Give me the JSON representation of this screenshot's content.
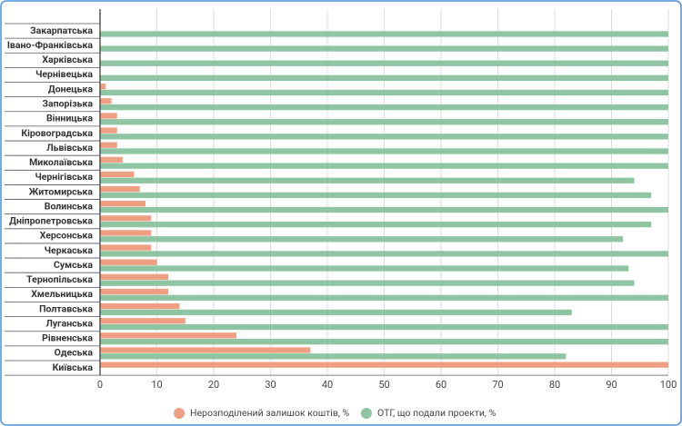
{
  "chart_data": {
    "type": "hbar",
    "categories": [
      "Закарпатська",
      "Івано-Франківська",
      "Харківська",
      "Чернівецька",
      "Донецька",
      "Запорізька",
      "Вінницька",
      "Кіровоградська",
      "Львівська",
      "Миколаївська",
      "Чернігівська",
      "Житомирська",
      "Волинська",
      "Дніпропетровська",
      "Херсонська",
      "Черкаська",
      "Сумська",
      "Тернопільська",
      "Хмельницька",
      "Полтавська",
      "Луганська",
      "Рівненська",
      "Одеська",
      "Київська"
    ],
    "series": [
      {
        "name": "Нерозподілений залишок коштів, %",
        "color": "#ef9f82",
        "values": [
          0,
          0,
          0,
          0,
          1,
          2,
          3,
          3,
          3,
          4,
          6,
          7,
          8,
          9,
          9,
          9,
          10,
          12,
          12,
          14,
          15,
          24,
          37,
          100
        ]
      },
      {
        "name": "ОТГ, що подали проекти, %",
        "color": "#8fc5a3",
        "values": [
          100,
          100,
          100,
          100,
          100,
          100,
          100,
          100,
          100,
          100,
          94,
          97,
          100,
          97,
          92,
          100,
          93,
          94,
          100,
          83,
          100,
          100,
          82,
          0
        ]
      }
    ],
    "xlim": [
      0,
      100
    ],
    "xticks": [
      0,
      10,
      20,
      30,
      40,
      50,
      60,
      70,
      80,
      90,
      100
    ],
    "grid": true
  }
}
